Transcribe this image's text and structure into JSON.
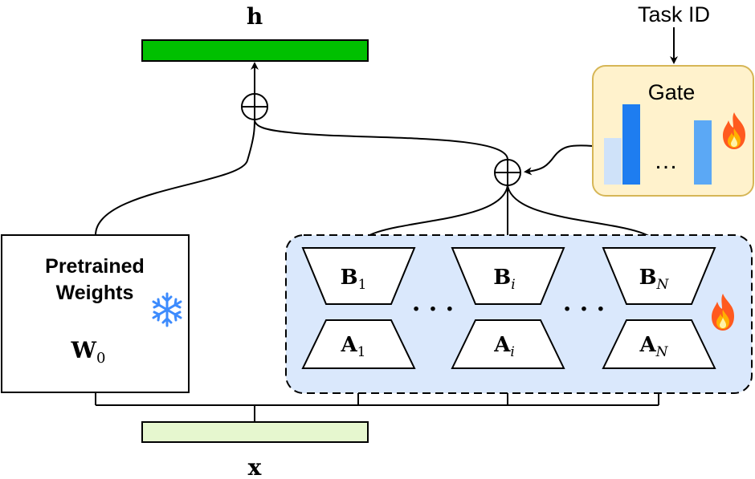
{
  "output_label": "h",
  "input_label": "x",
  "task_id_label": "Task ID",
  "gate": {
    "label": "Gate",
    "ellipsis": "…",
    "icon": "fire-icon",
    "bars": [
      {
        "level": 0.58,
        "color": "#cfe2f9"
      },
      {
        "level": 1.0,
        "color": "#1e7df0"
      },
      {
        "level": 0.8,
        "color": "#5ba8f5"
      }
    ]
  },
  "pretrained": {
    "title_line1": "Pretrained",
    "title_line2": "Weights",
    "weight_symbol": "W",
    "weight_subscript": "0",
    "icon": "snowflake-icon"
  },
  "adapters": [
    {
      "b_symbol": "B",
      "b_sub": "1",
      "a_symbol": "A",
      "a_sub": "1"
    },
    {
      "b_symbol": "B",
      "b_sub": "i",
      "a_symbol": "A",
      "a_sub": "i"
    },
    {
      "b_symbol": "B",
      "b_sub": "N",
      "a_symbol": "A",
      "a_sub": "N"
    }
  ],
  "adapter_ellipsis": "· · ·",
  "adapter_group_icon": "fire-icon",
  "colors": {
    "output_bar": "#00c000",
    "input_bar": "#e6f7cf",
    "gate_fill": "#fff2cc",
    "gate_stroke": "#d6b656",
    "adapter_region": "#dae8fc",
    "fire": "#ff5a1f"
  }
}
